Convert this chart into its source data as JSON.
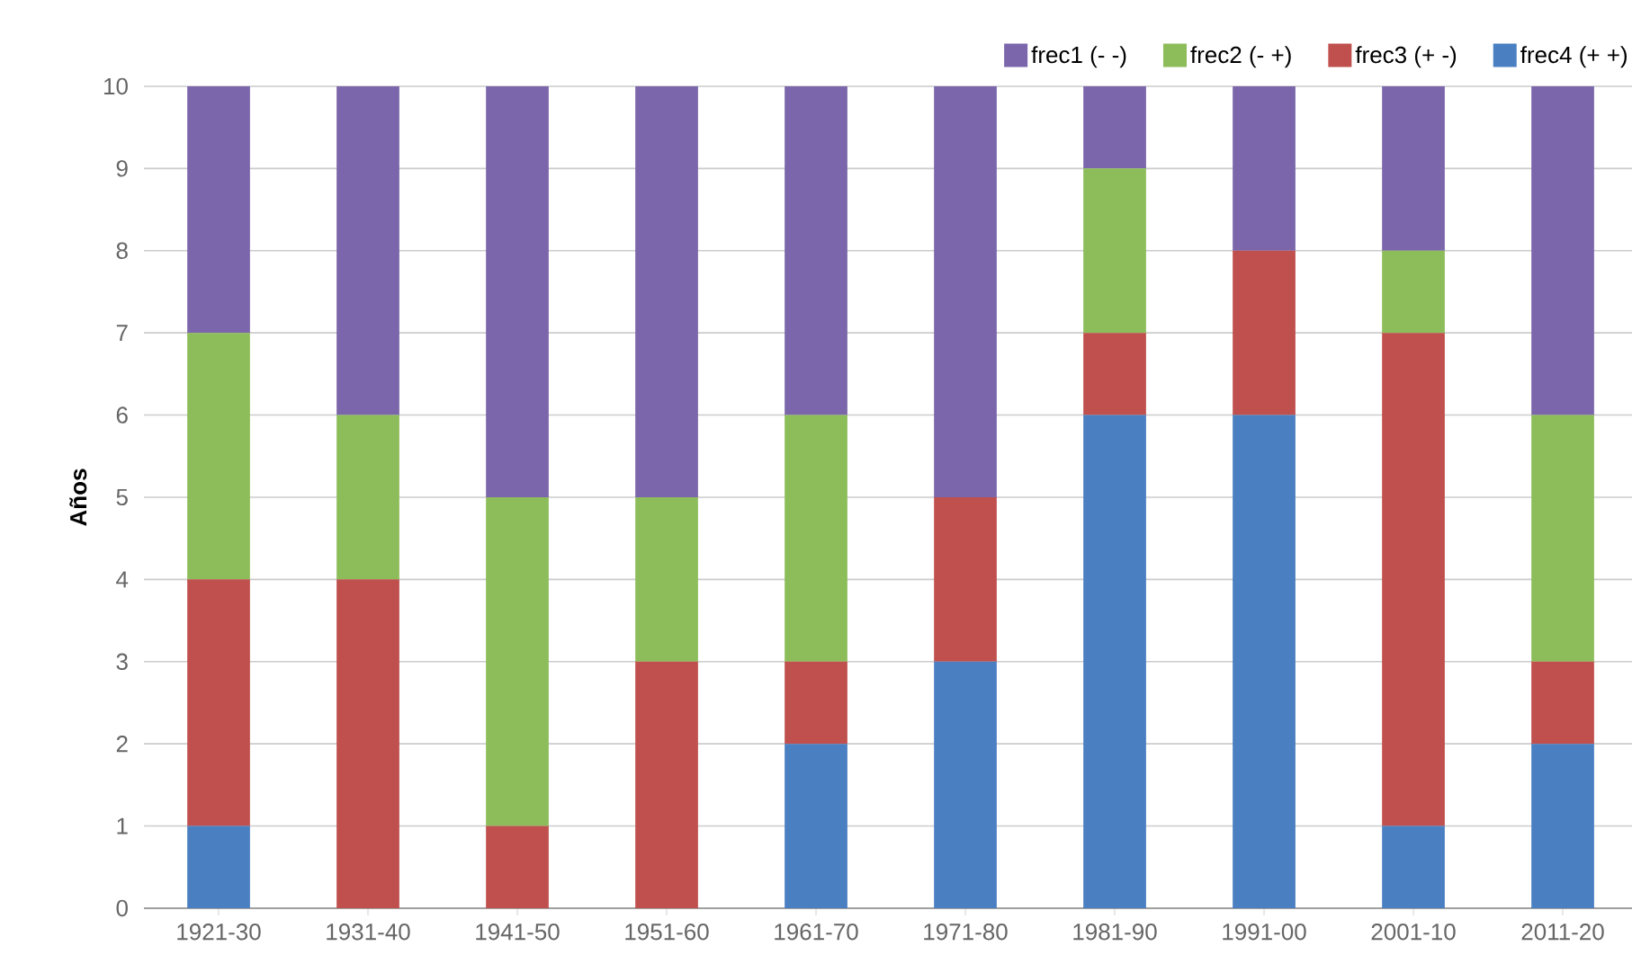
{
  "chart_data": {
    "type": "bar",
    "stacked": true,
    "ylabel": "Años",
    "categories": [
      "1921-30",
      "1931-40",
      "1941-50",
      "1951-60",
      "1961-70",
      "1971-80",
      "1981-90",
      "1991-00",
      "2001-10",
      "2011-20"
    ],
    "series": [
      {
        "name": "frec4 (+ +)",
        "color": "#4a7fc1",
        "values": [
          1,
          0,
          0,
          0,
          2,
          3,
          6,
          6,
          1,
          2
        ]
      },
      {
        "name": "frec3 (+ -)",
        "color": "#c0504d",
        "values": [
          3,
          4,
          1,
          3,
          1,
          2,
          1,
          2,
          6,
          1
        ]
      },
      {
        "name": "frec2 (- +)",
        "color": "#8dbd5a",
        "values": [
          3,
          2,
          4,
          2,
          3,
          0,
          2,
          0,
          1,
          3
        ]
      },
      {
        "name": "frec1 (- -)",
        "color": "#7b66ab",
        "values": [
          3,
          4,
          5,
          5,
          4,
          5,
          1,
          2,
          2,
          4
        ]
      }
    ],
    "ylim": [
      0,
      10
    ],
    "yticks": [
      0,
      1,
      2,
      3,
      4,
      5,
      6,
      7,
      8,
      9,
      10
    ],
    "grid": "y",
    "legend": "top right"
  }
}
